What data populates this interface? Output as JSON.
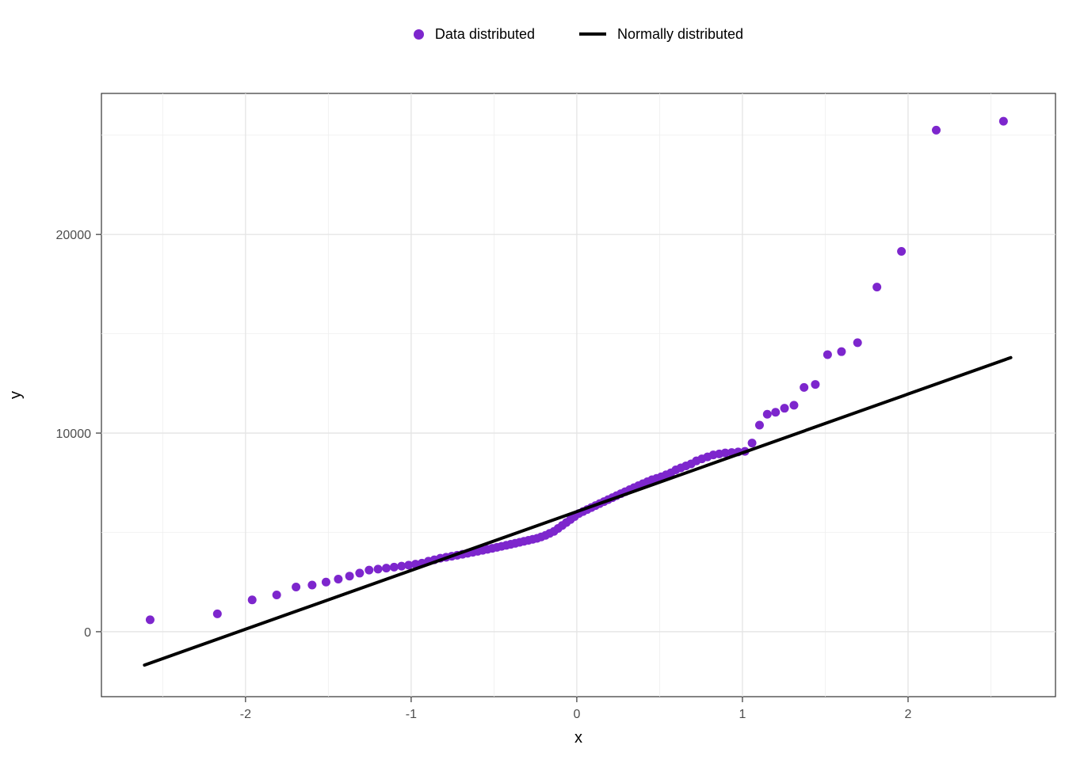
{
  "chart_data": {
    "type": "scatter",
    "title": "",
    "xlabel": "x",
    "ylabel": "y",
    "xlim": [
      -2.87,
      2.89
    ],
    "ylim": [
      -3270,
      27100
    ],
    "x_major_ticks": [
      -2,
      -1,
      0,
      1,
      2
    ],
    "x_minor_ticks": [
      -2.5,
      -1.5,
      -0.5,
      0.5,
      1.5,
      2.5
    ],
    "y_major_ticks": [
      0,
      10000,
      20000
    ],
    "y_minor_ticks": [
      5000,
      15000,
      25000
    ],
    "grid": true,
    "legend_position": "top-center",
    "panel_border_color": "#333333",
    "grid_major_color": "#e4e4e4",
    "grid_minor_color": "#efefef",
    "tick_color": "#333333",
    "tick_label_color": "#4d4d4d",
    "series": [
      {
        "name": "Data distributed",
        "type": "scatter",
        "color": "#7d26cd",
        "x": [
          -2.576,
          -2.17,
          -1.96,
          -1.812,
          -1.695,
          -1.598,
          -1.514,
          -1.44,
          -1.372,
          -1.311,
          -1.254,
          -1.2,
          -1.15,
          -1.103,
          -1.058,
          -1.015,
          -0.974,
          -0.935,
          -0.896,
          -0.86,
          -0.824,
          -0.789,
          -0.755,
          -0.722,
          -0.69,
          -0.659,
          -0.628,
          -0.598,
          -0.568,
          -0.539,
          -0.51,
          -0.482,
          -0.454,
          -0.426,
          -0.399,
          -0.372,
          -0.345,
          -0.319,
          -0.292,
          -0.266,
          -0.24,
          -0.215,
          -0.189,
          -0.164,
          -0.138,
          -0.113,
          -0.088,
          -0.063,
          -0.038,
          -0.013,
          0.013,
          0.038,
          0.063,
          0.088,
          0.113,
          0.138,
          0.164,
          0.189,
          0.215,
          0.24,
          0.266,
          0.292,
          0.319,
          0.345,
          0.372,
          0.399,
          0.426,
          0.454,
          0.482,
          0.51,
          0.539,
          0.568,
          0.598,
          0.628,
          0.659,
          0.69,
          0.722,
          0.755,
          0.789,
          0.824,
          0.86,
          0.896,
          0.935,
          0.974,
          1.015,
          1.058,
          1.103,
          1.15,
          1.2,
          1.254,
          1.311,
          1.372,
          1.44,
          1.514,
          1.598,
          1.695,
          1.812,
          1.96,
          2.17,
          2.576
        ],
        "y": [
          600,
          900,
          1600,
          1850,
          2250,
          2350,
          2500,
          2650,
          2800,
          2950,
          3100,
          3150,
          3200,
          3250,
          3300,
          3350,
          3400,
          3450,
          3550,
          3620,
          3700,
          3750,
          3800,
          3850,
          3900,
          3950,
          4000,
          4050,
          4100,
          4150,
          4200,
          4250,
          4300,
          4350,
          4400,
          4450,
          4500,
          4550,
          4600,
          4650,
          4700,
          4770,
          4850,
          4950,
          5050,
          5200,
          5350,
          5500,
          5650,
          5800,
          5950,
          6050,
          6150,
          6250,
          6350,
          6450,
          6550,
          6650,
          6750,
          6850,
          6950,
          7050,
          7150,
          7250,
          7350,
          7450,
          7550,
          7650,
          7720,
          7800,
          7900,
          8000,
          8150,
          8250,
          8350,
          8450,
          8600,
          8700,
          8800,
          8900,
          8950,
          9000,
          9020,
          9050,
          9080,
          9500,
          10400,
          10950,
          11050,
          11250,
          11400,
          12300,
          12450,
          13950,
          14100,
          14550,
          17350,
          19150,
          25250,
          25700
        ],
        "point_radius": 5.5
      },
      {
        "name": "Normally distributed",
        "type": "line",
        "color": "#000000",
        "width": 4,
        "x": [
          -2.61,
          2.62
        ],
        "y": [
          -1680,
          13800
        ]
      }
    ]
  },
  "legend": {
    "items": [
      {
        "label": "Data distributed",
        "swatch": "point"
      },
      {
        "label": "Normally distributed",
        "swatch": "line"
      }
    ]
  }
}
